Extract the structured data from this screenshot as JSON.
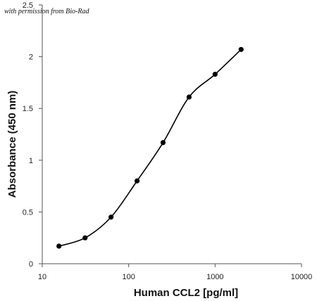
{
  "chart_data": {
    "type": "scatter",
    "annotation": "with permission from Bio-Rad",
    "xlabel": "Human CCL2 [pg/ml]",
    "ylabel": "Absorbance (450 nm)",
    "x_scale": "log",
    "xlim": [
      10,
      10000
    ],
    "ylim": [
      0,
      2.5
    ],
    "x_ticks": [
      10,
      100,
      1000,
      10000
    ],
    "x_tick_labels": [
      "10",
      "100",
      "1000",
      "10000"
    ],
    "y_ticks": [
      0,
      0.5,
      1,
      1.5,
      2,
      2.5
    ],
    "y_tick_labels": [
      "0",
      "0.5",
      "1",
      "1.5",
      "2",
      "2.5"
    ],
    "grid": false,
    "legend": "none",
    "series": [
      {
        "x": [
          15.6,
          31.3,
          62.5,
          125,
          250,
          500,
          1000,
          2000
        ],
        "y": [
          0.17,
          0.25,
          0.45,
          0.8,
          1.17,
          1.61,
          1.83,
          2.07
        ]
      }
    ],
    "colors": {
      "marker": "#000000",
      "line": "#000000",
      "axis": "#555555"
    }
  }
}
